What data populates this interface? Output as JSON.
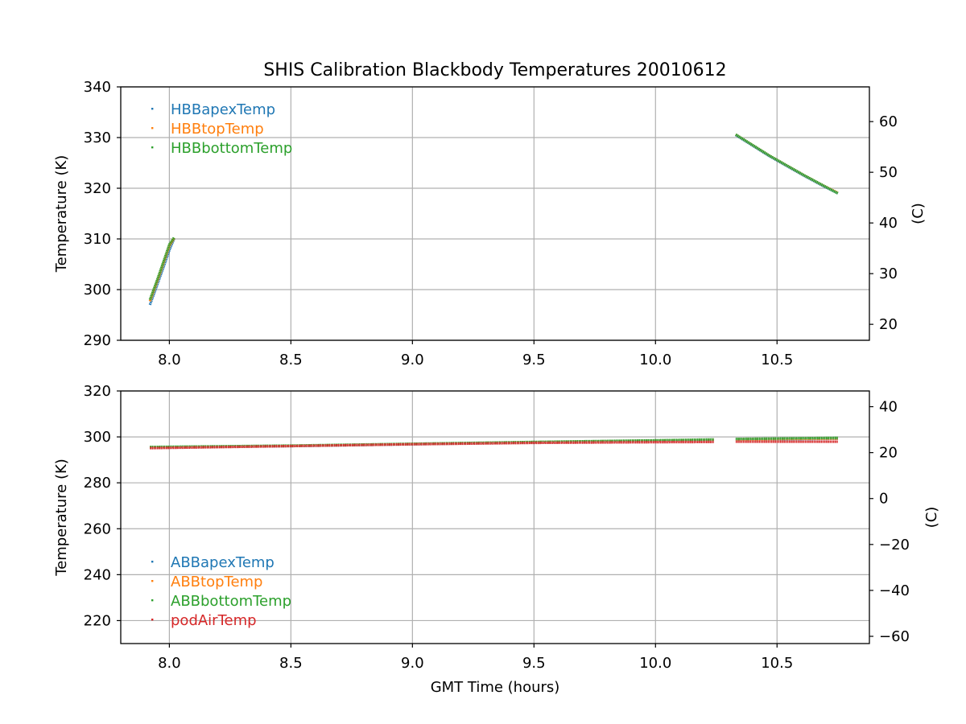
{
  "figure_title": "SHIS Calibration Blackbody Temperatures 20010612",
  "chart_data": [
    {
      "type": "scatter",
      "title": "SHIS Calibration Blackbody Temperatures 20010612",
      "xlabel": "",
      "ylabel": "Temperature (K)",
      "y2label": "(C)",
      "xlim": [
        7.8,
        10.88
      ],
      "ylim": [
        290,
        340
      ],
      "y2lim": [
        16.85,
        66.85
      ],
      "x_ticks": [
        "8.0",
        "8.5",
        "9.0",
        "9.5",
        "10.0",
        "10.5"
      ],
      "y_ticks": [
        "290",
        "300",
        "310",
        "320",
        "330",
        "340"
      ],
      "y2_ticks": [
        "20",
        "30",
        "40",
        "50",
        "60"
      ],
      "grid": true,
      "legend_position": "top-left",
      "series": [
        {
          "name": "HBBapexTemp",
          "color": "#1f77b4",
          "segments": [
            {
              "x": [
                7.92,
                7.94,
                7.96,
                7.98,
                8.0,
                8.02
              ],
              "y": [
                297.0,
                299.6,
                302.3,
                305.0,
                307.8,
                310.1
              ]
            },
            {
              "x": [
                10.33,
                10.4,
                10.47,
                10.54,
                10.61,
                10.68,
                10.75
              ],
              "y": [
                330.5,
                328.4,
                326.3,
                324.4,
                322.5,
                320.7,
                319.0
              ]
            }
          ]
        },
        {
          "name": "HBBtopTemp",
          "color": "#ff7f0e",
          "segments": [
            {
              "x": [
                7.92,
                7.94,
                7.96,
                7.98,
                8.0,
                8.02
              ],
              "y": [
                297.7,
                300.3,
                303.0,
                305.8,
                308.6,
                310.2
              ]
            },
            {
              "x": [
                10.33,
                10.4,
                10.47,
                10.54,
                10.61,
                10.68,
                10.75
              ],
              "y": [
                330.6,
                328.5,
                326.4,
                324.5,
                322.6,
                320.8,
                319.1
              ]
            }
          ]
        },
        {
          "name": "HBBbottomTemp",
          "color": "#2ca02c",
          "segments": [
            {
              "x": [
                7.92,
                7.94,
                7.96,
                7.98,
                8.0,
                8.02
              ],
              "y": [
                298.0,
                300.6,
                303.3,
                306.1,
                308.9,
                310.3
              ]
            },
            {
              "x": [
                10.33,
                10.4,
                10.47,
                10.54,
                10.61,
                10.68,
                10.75
              ],
              "y": [
                330.6,
                328.5,
                326.4,
                324.5,
                322.6,
                320.8,
                319.0
              ]
            }
          ]
        }
      ]
    },
    {
      "type": "scatter",
      "title": "",
      "xlabel": "GMT Time (hours)",
      "ylabel": "Temperature (K)",
      "y2label": "(C)",
      "xlim": [
        7.8,
        10.88
      ],
      "ylim": [
        210,
        320
      ],
      "y2lim": [
        -63.15,
        46.85
      ],
      "x_ticks": [
        "8.0",
        "8.5",
        "9.0",
        "9.5",
        "10.0",
        "10.5"
      ],
      "y_ticks": [
        "220",
        "240",
        "260",
        "280",
        "300",
        "320"
      ],
      "y2_ticks": [
        "−60",
        "−40",
        "−20",
        "0",
        "20",
        "40"
      ],
      "grid": true,
      "legend_position": "lower-left",
      "series": [
        {
          "name": "ABBapexTemp",
          "color": "#1f77b4",
          "segments": [
            {
              "x": [
                7.92,
                8.5,
                9.0,
                9.5,
                10.0,
                10.24
              ],
              "y": [
                295.4,
                296.0,
                296.8,
                297.6,
                298.3,
                298.6
              ]
            },
            {
              "x": [
                10.33,
                10.5,
                10.75
              ],
              "y": [
                298.8,
                299.0,
                299.2
              ]
            }
          ]
        },
        {
          "name": "ABBtopTemp",
          "color": "#ff7f0e",
          "segments": [
            {
              "x": [
                7.92,
                8.5,
                9.0,
                9.5,
                10.0,
                10.24
              ],
              "y": [
                295.5,
                296.1,
                296.9,
                297.7,
                298.4,
                298.7
              ]
            },
            {
              "x": [
                10.33,
                10.5,
                10.75
              ],
              "y": [
                298.9,
                299.1,
                299.3
              ]
            }
          ]
        },
        {
          "name": "ABBbottomTemp",
          "color": "#2ca02c",
          "segments": [
            {
              "x": [
                7.92,
                8.5,
                9.0,
                9.5,
                10.0,
                10.24
              ],
              "y": [
                295.6,
                296.2,
                297.0,
                297.8,
                298.5,
                298.9
              ]
            },
            {
              "x": [
                10.33,
                10.5,
                10.75
              ],
              "y": [
                299.1,
                299.3,
                299.6
              ]
            }
          ]
        },
        {
          "name": "podAirTemp",
          "color": "#d62728",
          "segments": [
            {
              "x": [
                7.92,
                8.5,
                9.0,
                9.5,
                10.0,
                10.24
              ],
              "y": [
                295.1,
                296.0,
                296.8,
                297.4,
                297.7,
                297.8
              ]
            },
            {
              "x": [
                10.33,
                10.5,
                10.75
              ],
              "y": [
                297.9,
                297.9,
                297.9
              ]
            }
          ]
        }
      ]
    }
  ]
}
